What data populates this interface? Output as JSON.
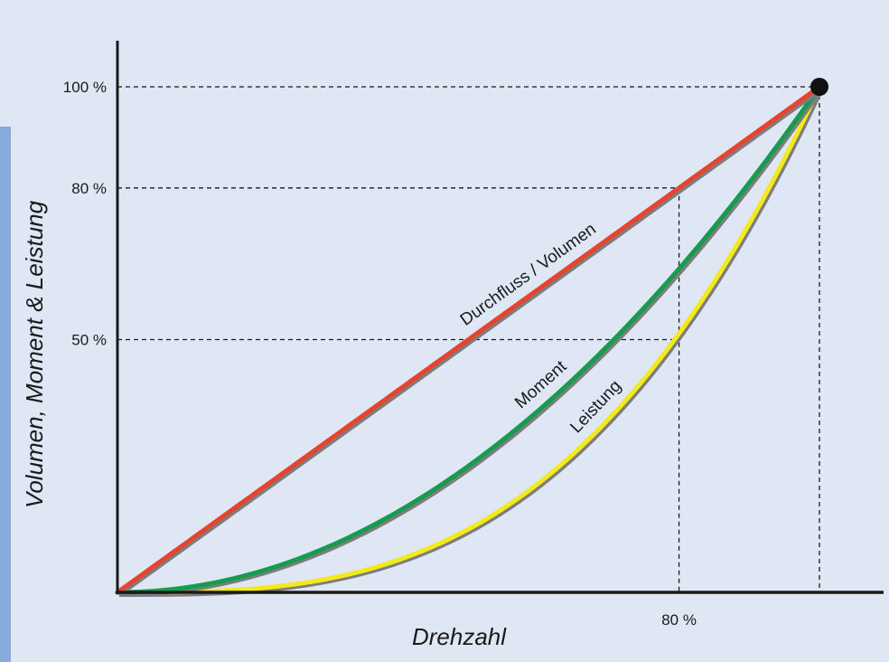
{
  "chart_data": {
    "type": "line",
    "title": "",
    "xlabel": "Drehzahl",
    "ylabel": "Volumen, Moment & Leistung",
    "xlim": [
      0,
      100
    ],
    "ylim": [
      0,
      100
    ],
    "y_ticks": [
      {
        "value": 50,
        "label": "50 %"
      },
      {
        "value": 80,
        "label": "80 %"
      },
      {
        "value": 100,
        "label": "100 %"
      }
    ],
    "x_ticks": [
      {
        "value": 80,
        "label": "80 %"
      }
    ],
    "reference_point": {
      "x": 100,
      "y": 100
    },
    "series": [
      {
        "name": "Durchfluss / Volumen",
        "color": "#e8432e",
        "exponent": 1,
        "label_at": 60
      },
      {
        "name": "Moment",
        "color": "#169c4f",
        "exponent": 2,
        "label_at": 62
      },
      {
        "name": "Leistung",
        "color": "#f3ea1d",
        "exponent": 3,
        "label_at": 70
      }
    ],
    "colors": {
      "background": "#dfe7f4",
      "left_strip": "#86aadb",
      "axis": "#1a1a1a",
      "gridline": "#1a1a1a"
    },
    "grid": false
  }
}
